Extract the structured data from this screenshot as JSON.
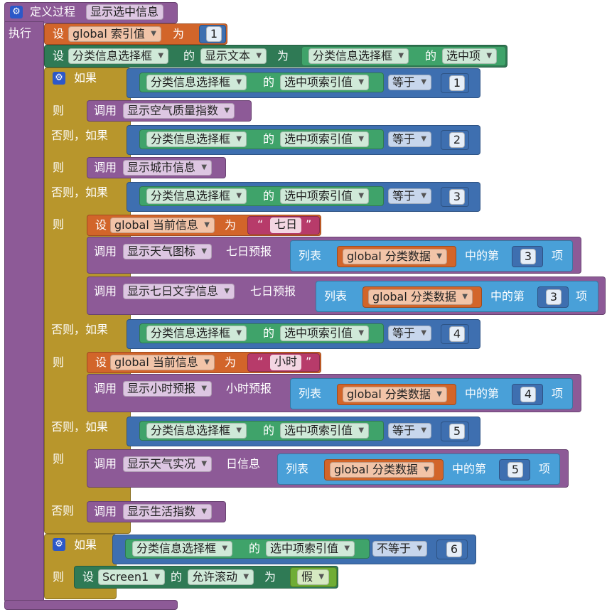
{
  "procedure": {
    "label": "定义过程",
    "name": "显示选中信息",
    "do_label": "执行"
  },
  "kw": {
    "set": "设",
    "to": "为",
    "of": "的",
    "if": "如果",
    "then": "则",
    "else_if": "否则，如果",
    "else": "否则",
    "call": "调用",
    "equals": "等于",
    "not_equals": "不等于",
    "list": "列表",
    "nth": "中的第",
    "item": "项",
    "quote_open": "“",
    "quote_close": "”"
  },
  "row1": {
    "var": "global 索引值",
    "value": "1"
  },
  "row2": {
    "comp": "分类信息选择框",
    "prop": "显示文本",
    "comp2": "分类信息选择框",
    "prop2": "选中项"
  },
  "cond": {
    "comp": "分类信息选择框",
    "prop": "选中项索引值"
  },
  "cmp_values": [
    "1",
    "2",
    "3",
    "4",
    "5",
    "6"
  ],
  "calls": {
    "air": "显示空气质量指数",
    "city": "显示城市信息",
    "weather_icon": "显示天气图标",
    "seven_text": "显示七日文字信息",
    "hour": "显示小时预报",
    "live": "显示天气实况",
    "life": "显示生活指数"
  },
  "params": {
    "seven_day": "七日预报",
    "hourly": "小时预报",
    "daily": "日信息"
  },
  "vars": {
    "current_info": "global 当前信息",
    "category_data": "global 分类数据"
  },
  "strings": {
    "seven": "七日",
    "hour": "小时"
  },
  "row_last": {
    "screen": "Screen1",
    "prop": "允许滚动",
    "value": "假"
  }
}
